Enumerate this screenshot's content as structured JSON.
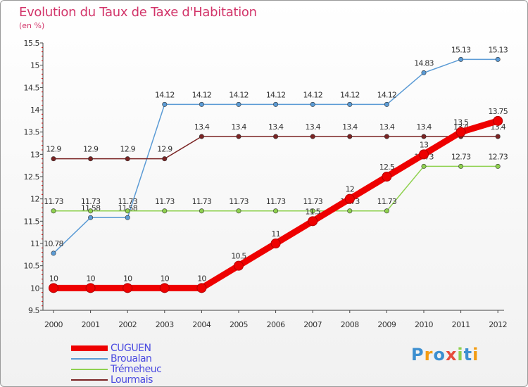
{
  "title": "Evolution du Taux de Taxe d'Habitation",
  "subtitle": "(en %)",
  "logo_text": "Proxiti",
  "chart_data": {
    "type": "line",
    "x": [
      "2000",
      "2001",
      "2002",
      "2003",
      "2004",
      "2005",
      "2006",
      "2007",
      "2008",
      "2009",
      "2010",
      "2011",
      "2012"
    ],
    "ylim": [
      9.5,
      15.5
    ],
    "yticks": [
      "9.5",
      "10",
      "10.5",
      "11",
      "11.5",
      "12",
      "12.5",
      "13",
      "13.5",
      "14",
      "14.5",
      "15",
      "15.5"
    ],
    "grid": false,
    "legend_position": "bottom-left",
    "series": [
      {
        "name": "Broualan",
        "color": "#5b9bd5",
        "values": [
          10.78,
          11.58,
          11.58,
          14.12,
          14.12,
          14.12,
          14.12,
          14.12,
          14.12,
          14.12,
          14.83,
          15.13,
          15.13
        ],
        "labels": [
          "10.78",
          "11.58",
          "11.58",
          "14.12",
          "14.12",
          "14.12",
          "14.12",
          "14.12",
          "14.12",
          "14.12",
          "14.83",
          "15.13",
          "15.13"
        ]
      },
      {
        "name": "Trémeheuc",
        "color": "#8fd14f",
        "values": [
          11.73,
          11.73,
          11.73,
          11.73,
          11.73,
          11.73,
          11.73,
          11.73,
          11.73,
          11.73,
          12.73,
          12.73,
          12.73
        ],
        "labels": [
          "11.73",
          "11.73",
          "11.73",
          "11.73",
          "11.73",
          "11.73",
          "11.73",
          "11.73",
          "11.73",
          "11.73",
          "12.73",
          "12.73",
          "12.73"
        ]
      },
      {
        "name": "Lourmais",
        "color": "#7a2323",
        "values": [
          12.9,
          12.9,
          12.9,
          12.9,
          13.4,
          13.4,
          13.4,
          13.4,
          13.4,
          13.4,
          13.4,
          13.4,
          13.4
        ],
        "labels": [
          "12.9",
          "12.9",
          "12.9",
          "12.9",
          "13.4",
          "13.4",
          "13.4",
          "13.4",
          "13.4",
          "13.4",
          "13.4",
          "13.4",
          "13.4"
        ]
      },
      {
        "name": "CUGUEN",
        "color": "#ee0000",
        "values": [
          10,
          10,
          10,
          10,
          10,
          10.5,
          11,
          11.5,
          12,
          12.5,
          13,
          13.5,
          13.75
        ],
        "labels": [
          "10",
          "10",
          "10",
          "10",
          "10",
          "10.5",
          "11",
          "11.5",
          "12",
          "12.5",
          "13",
          "13.5",
          "13.75"
        ]
      }
    ]
  }
}
